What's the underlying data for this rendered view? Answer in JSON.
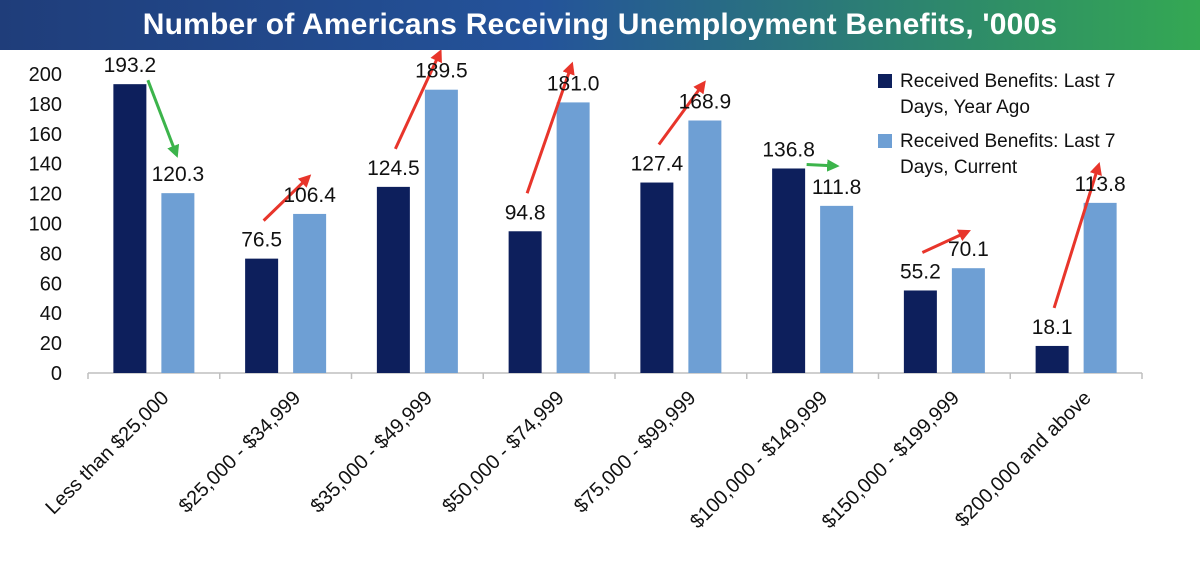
{
  "title": "Number of Americans Receiving Unemployment Benefits, '000s",
  "colors": {
    "series1": "#0d1f5c",
    "series2": "#6e9fd4",
    "arrow_up": "#e8352b",
    "arrow_down": "#3cb44b"
  },
  "chart_data": {
    "type": "bar",
    "title": "Number of Americans Receiving Unemployment Benefits, '000s",
    "xlabel": "",
    "ylabel": "",
    "ylim": [
      0,
      200
    ],
    "yticks": [
      0,
      20,
      40,
      60,
      80,
      100,
      120,
      140,
      160,
      180,
      200
    ],
    "categories": [
      "Less than $25,000",
      "$25,000 - $34,999",
      "$35,000 - $49,999",
      "$50,000 - $74,999",
      "$75,000 - $99,999",
      "$100,000 - $149,999",
      "$150,000 - $199,999",
      "$200,000 and above"
    ],
    "series": [
      {
        "name": "Received Benefits: Last 7 Days, Year Ago",
        "values": [
          193.2,
          76.5,
          124.5,
          94.8,
          127.4,
          136.8,
          55.2,
          18.1
        ],
        "labels": [
          "193.2",
          "76.5",
          "124.5",
          "94.8",
          "127.4",
          "136.8",
          "55.2",
          "18.1"
        ]
      },
      {
        "name": "Received Benefits: Last 7 Days, Current",
        "values": [
          120.3,
          106.4,
          189.5,
          181.0,
          168.9,
          111.8,
          70.1,
          113.8
        ],
        "labels": [
          "120.3",
          "106.4",
          "189.5",
          "181.0",
          "168.9",
          "111.8",
          "70.1",
          "113.8"
        ]
      }
    ],
    "legend": {
      "position": "top-right",
      "entries": [
        {
          "line1": "Received Benefits: Last 7",
          "line2": "Days, Year Ago"
        },
        {
          "line1": "Received Benefits: Last 7",
          "line2": "Days, Current"
        }
      ]
    },
    "grid": false,
    "annotations": "arrow from year-ago label to current label in each category; red where the current value is higher, green where it is lower"
  }
}
